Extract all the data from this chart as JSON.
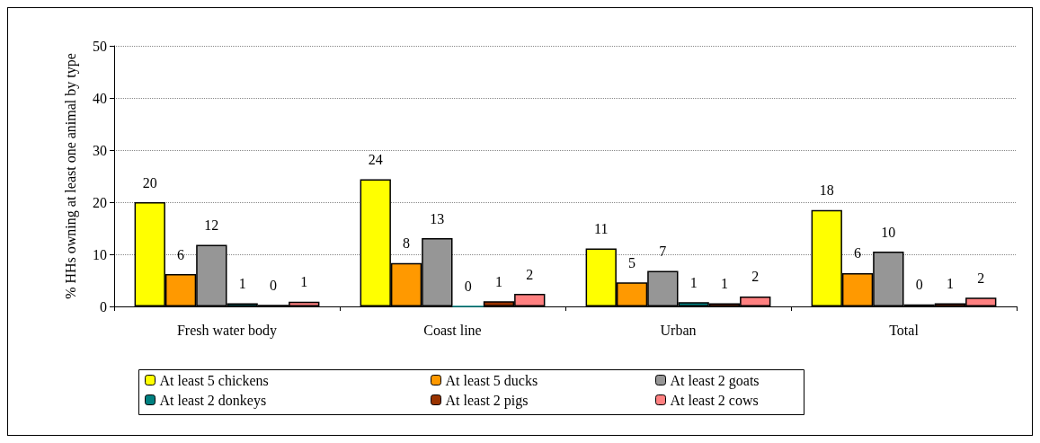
{
  "chart_data": {
    "type": "bar",
    "ylabel": "% HHs owning at least one animal by type",
    "categories": [
      "Fresh water body",
      "Coast line",
      "Urban",
      "Total"
    ],
    "series": [
      {
        "name": "At least 5 chickens",
        "color": "#ffff00",
        "values": [
          20,
          24.4,
          11.1,
          18.5
        ],
        "value_labels": [
          "20",
          "24",
          "11",
          "18"
        ]
      },
      {
        "name": "At least 5 ducks",
        "color": "#ff9900",
        "values": [
          6.2,
          8.3,
          4.6,
          6.4
        ],
        "value_labels": [
          "6",
          "8",
          "5",
          "6"
        ]
      },
      {
        "name": "At least 2 goats",
        "color": "#969696",
        "values": [
          11.8,
          13.1,
          6.8,
          10.5
        ],
        "value_labels": [
          "12",
          "13",
          "7",
          "10"
        ]
      },
      {
        "name": "At least 2 donkeys",
        "color": "#008080",
        "values": [
          0.6,
          0,
          0.8,
          0.4
        ],
        "value_labels": [
          "1",
          "0",
          "1",
          "0"
        ]
      },
      {
        "name": "At least 2 pigs",
        "color": "#993300",
        "values": [
          0.3,
          1,
          0.6,
          0.6
        ],
        "value_labels": [
          "0",
          "1",
          "1",
          "1"
        ]
      },
      {
        "name": "At least 2 cows",
        "color": "#ff8080",
        "values": [
          0.9,
          2.4,
          1.9,
          1.7
        ],
        "value_labels": [
          "1",
          "2",
          "2",
          "2"
        ]
      }
    ],
    "ylim": [
      0,
      50
    ],
    "yticks": [
      0,
      10,
      20,
      30,
      40,
      50
    ],
    "grid": "y",
    "legend": "bottom"
  }
}
